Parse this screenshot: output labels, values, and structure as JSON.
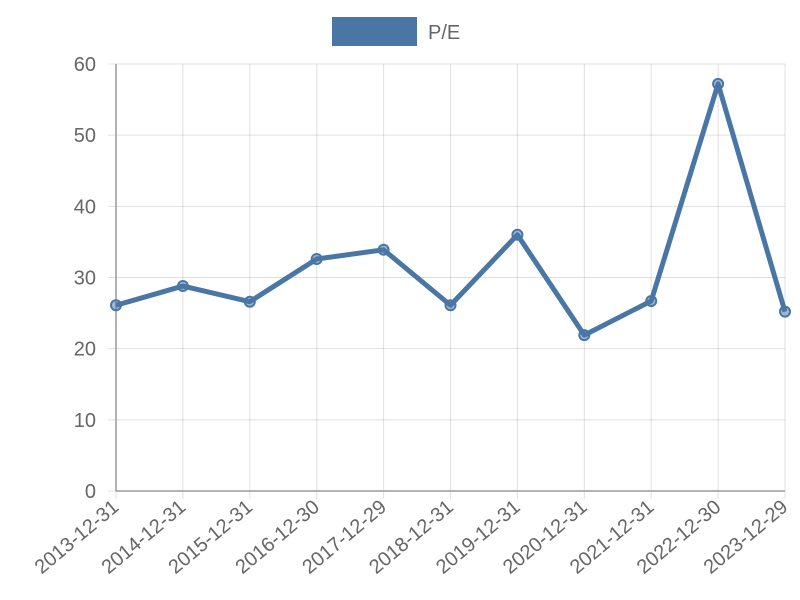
{
  "chart_data": {
    "type": "line",
    "categories": [
      "2013-12-31",
      "2014-12-31",
      "2015-12-31",
      "2016-12-30",
      "2017-12-29",
      "2018-12-31",
      "2019-12-31",
      "2020-12-31",
      "2021-12-31",
      "2022-12-30",
      "2023-12-29"
    ],
    "series": [
      {
        "name": "P/E",
        "color": "#4a76a6",
        "values": [
          26.1,
          28.8,
          26.6,
          32.6,
          33.9,
          26.1,
          36.0,
          21.9,
          26.7,
          57.2,
          25.2
        ]
      }
    ],
    "ylim": [
      0,
      60
    ],
    "yticks": [
      0,
      10,
      20,
      30,
      40,
      50,
      60
    ],
    "grid": true,
    "legend": "top"
  }
}
